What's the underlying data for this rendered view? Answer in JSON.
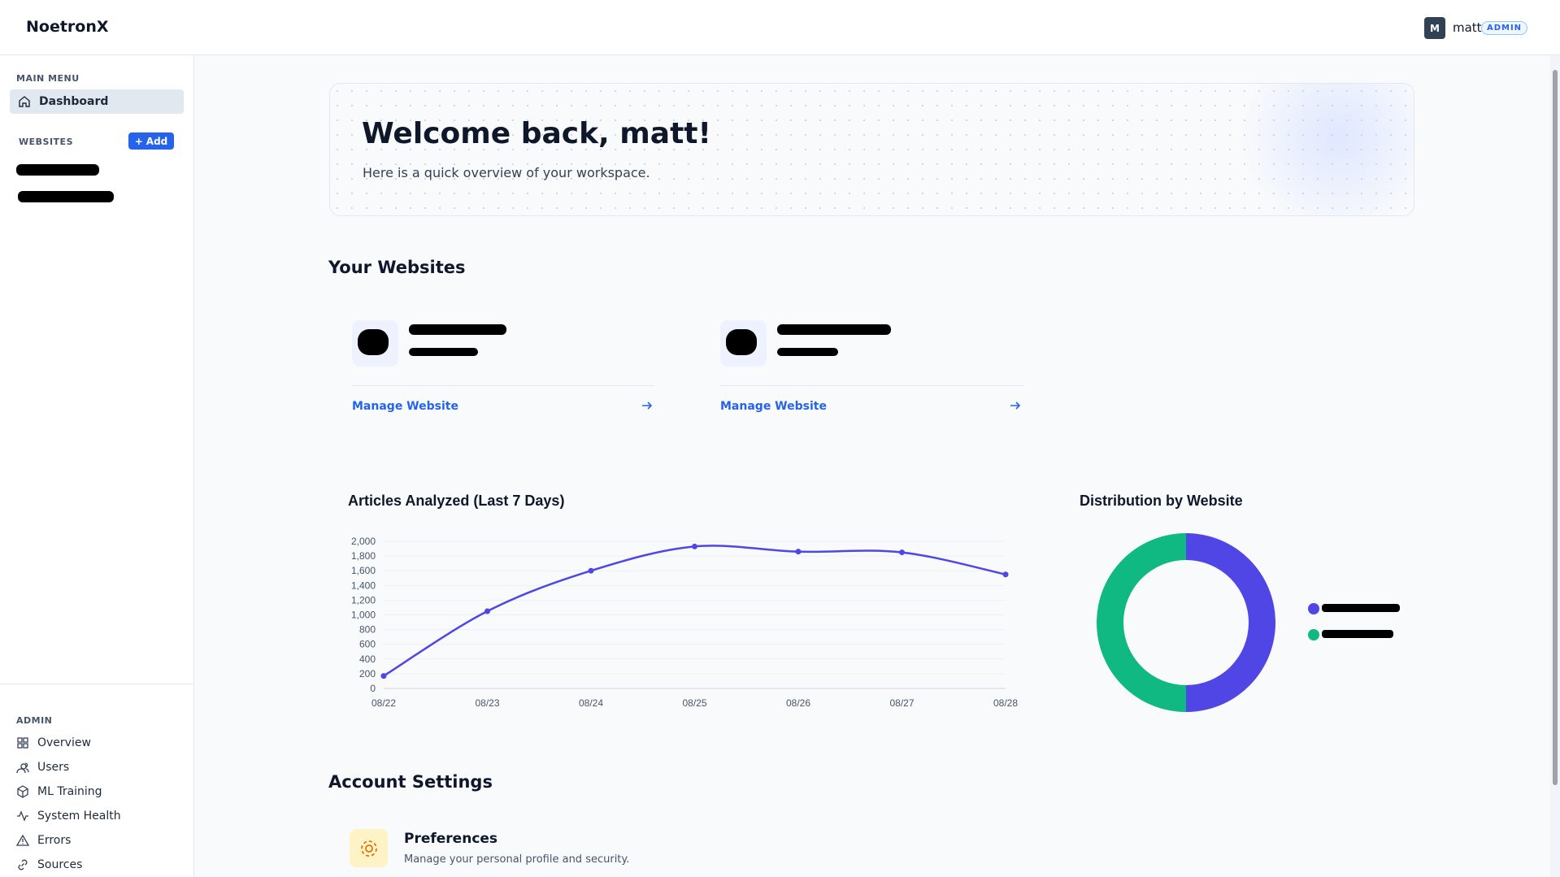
{
  "header": {
    "brand": "NoetronX",
    "avatar": "M",
    "user": "matt",
    "role": "ADMIN"
  },
  "sidebar": {
    "main_menu_title": "MAIN MENU",
    "main_menu": [
      "Dashboard"
    ],
    "websites_title": "WEBSITES",
    "add_button": "Add",
    "admin_title": "ADMIN",
    "admin_menu": [
      "Overview",
      "Users",
      "ML Training",
      "System Health",
      "Errors",
      "Sources"
    ]
  },
  "welcome": {
    "title": "Welcome back, matt!",
    "subtitle": "Here is a quick overview of your workspace."
  },
  "websites": {
    "title": "Your Websites",
    "cards": [
      {
        "link": "Manage Website"
      },
      {
        "link": "Manage Website"
      }
    ]
  },
  "chart_data": [
    {
      "type": "line",
      "title": "Articles Analyzed (Last 7 Days)",
      "categories": [
        "08/22",
        "08/23",
        "08/24",
        "08/25",
        "08/26",
        "08/27",
        "08/28"
      ],
      "series": [
        {
          "color": "#4f46e5",
          "values": [
            170,
            1050,
            1600,
            1930,
            1860,
            1850,
            1550
          ]
        }
      ],
      "ylim": [
        0,
        2000
      ],
      "yticks": [
        0,
        200,
        400,
        600,
        800,
        {
          "value": 1000,
          "label": "1,000"
        },
        {
          "value": 1200,
          "label": "1,200"
        },
        {
          "value": 1400,
          "label": "1,400"
        },
        {
          "value": 1600,
          "label": "1,600"
        },
        {
          "value": 1800,
          "label": "1,800"
        },
        {
          "value": 2000,
          "label": "2,000"
        }
      ],
      "grid": true
    },
    {
      "type": "pie",
      "title": "Distribution by Website",
      "categories": [
        null,
        null
      ],
      "values": [
        50,
        50
      ],
      "colors": [
        "#4f46e5",
        "#10b981"
      ]
    }
  ],
  "account": {
    "title": "Account Settings",
    "items": [
      {
        "title": "Preferences",
        "description": "Manage your personal profile and security."
      }
    ]
  }
}
